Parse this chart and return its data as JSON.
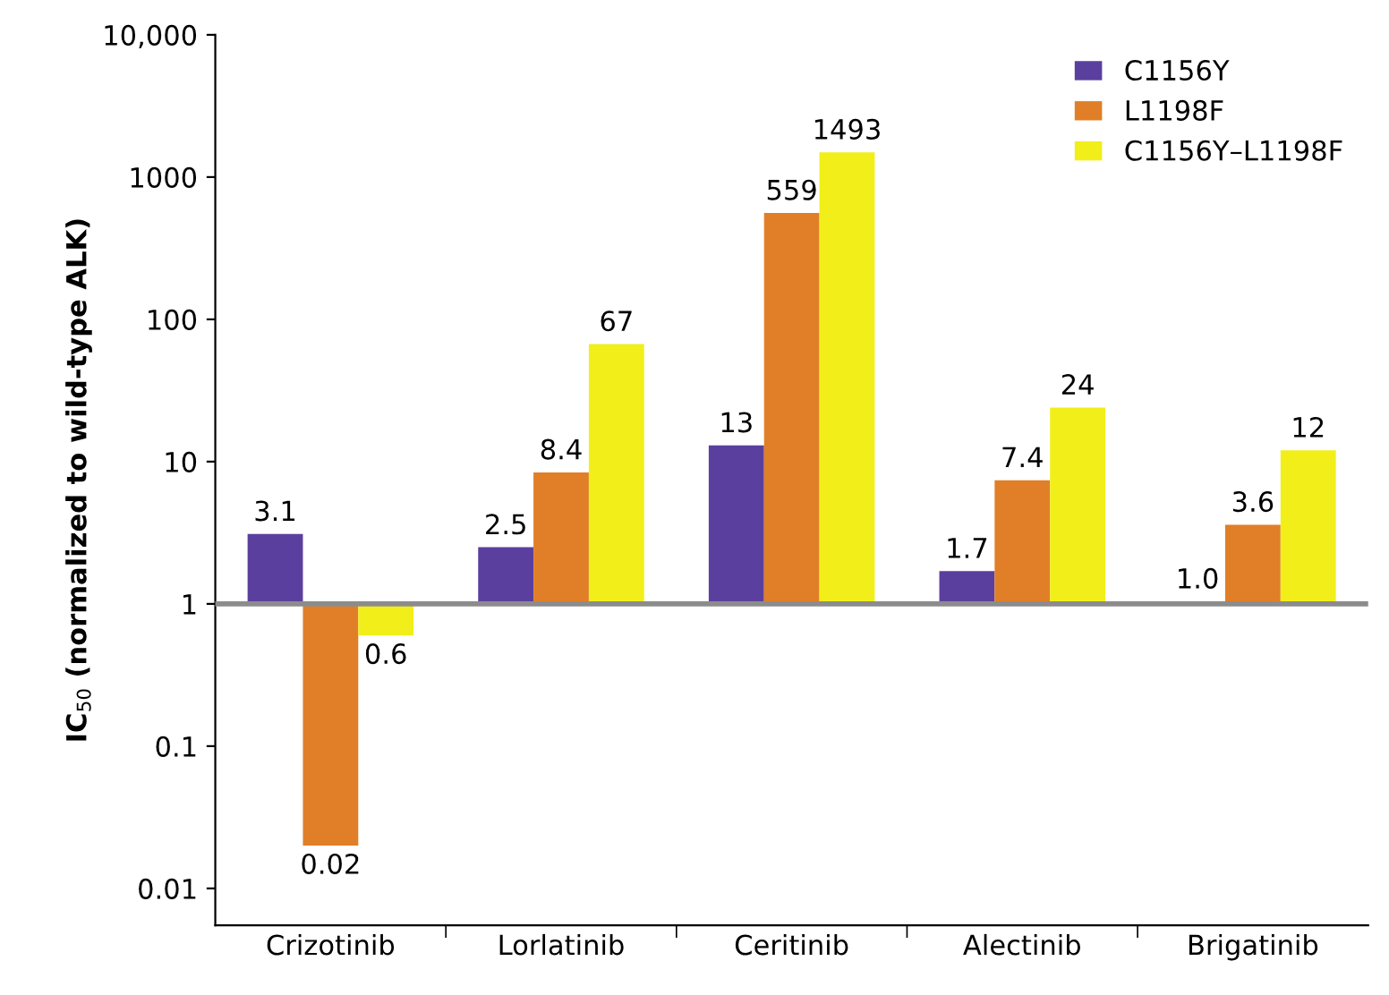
{
  "chart_data": {
    "type": "bar",
    "ylabel": "IC$_{50}$ (normalized to wild-type ALK)",
    "log": "y",
    "categories": [
      "Crizotinib",
      "Lorlatinib",
      "Ceritinib",
      "Alectinib",
      "Brigatinib"
    ],
    "series": [
      {
        "name": "C1156Y",
        "color": "#5b3f9e",
        "base": [
          1,
          1,
          1,
          1,
          1
        ],
        "values": [
          2.1,
          1.5,
          12,
          0.7,
          0.04
        ],
        "value_labels": [
          "3.1",
          "2.5",
          "13",
          "1.7",
          "1.0"
        ]
      },
      {
        "name": "L1198F",
        "color": "#e07f27",
        "base": [
          1,
          1,
          1,
          1,
          1
        ],
        "values": [
          -0.98,
          7.4,
          558,
          6.4,
          2.6
        ],
        "value_labels": [
          "0.02",
          "8.4",
          "559",
          "7.4",
          "3.6"
        ]
      },
      {
        "name": "C1156Y–L1198F",
        "color": "#f2ee1a",
        "base": [
          1,
          1,
          1,
          1,
          1
        ],
        "values": [
          -0.4,
          66,
          1492,
          23,
          11
        ],
        "value_labels": [
          "0.6",
          "67",
          "1493",
          "24",
          "12"
        ]
      }
    ],
    "ylim": [
      0.0055,
      10000
    ],
    "yticks": [
      {
        "value": 0.01,
        "label": "0.01"
      },
      {
        "value": 0.1,
        "label": "0.1"
      },
      1,
      10,
      100,
      1000,
      {
        "value": 10000,
        "label": "10,000"
      }
    ],
    "ref_lines": [
      {
        "axis": "y",
        "value": 1,
        "color": "#8c8c8c"
      }
    ],
    "data_labels": true,
    "legend": "top right"
  }
}
